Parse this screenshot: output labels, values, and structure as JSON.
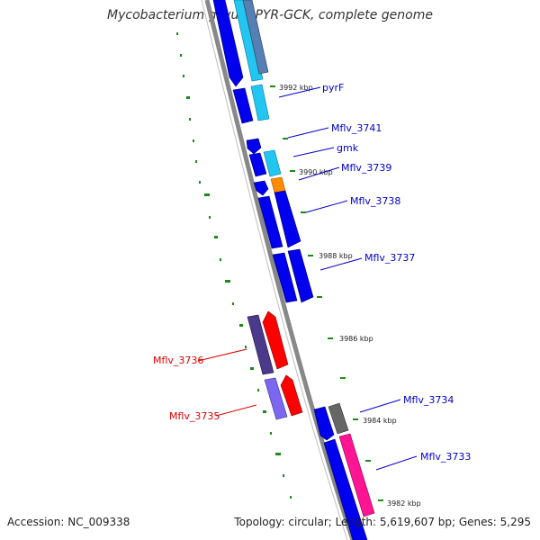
{
  "title": "Mycobacterium gilvum PYR-GCK, complete genome",
  "footer": {
    "accession": "Accession: NC_009338",
    "stats": "Topology: circular; Length: 5,619,607 bp; Genes: 5,295"
  },
  "colors": {
    "backbone": "#888888",
    "forward_cds": "#0000ee",
    "reverse_cds": "#0000ee",
    "rna": "#22c6f0",
    "orange_feature": "#ff8c00",
    "red_feature": "#ff0000",
    "purple_feature": "#4b3a8c",
    "lavender_feature": "#7b68ee",
    "grey_feature": "#666666",
    "pink_feature": "#ff1493",
    "tick_green": "#1a8a1a",
    "forward_label": "#0000cc",
    "reverse_label": "#dd0000"
  },
  "kbp_labels": [
    "3992 kbp",
    "3990 kbp",
    "3988 kbp",
    "3986 kbp",
    "3984 kbp",
    "3982 kbp"
  ],
  "gene_labels": [
    {
      "name": "pyrF",
      "strand": "forward"
    },
    {
      "name": "Mflv_3741",
      "strand": "forward"
    },
    {
      "name": "gmk",
      "strand": "forward"
    },
    {
      "name": "Mflv_3739",
      "strand": "forward"
    },
    {
      "name": "Mflv_3738",
      "strand": "forward"
    },
    {
      "name": "Mflv_3737",
      "strand": "forward"
    },
    {
      "name": "Mflv_3736",
      "strand": "reverse"
    },
    {
      "name": "Mflv_3735",
      "strand": "reverse"
    },
    {
      "name": "Mflv_3734",
      "strand": "forward"
    },
    {
      "name": "Mflv_3733",
      "strand": "forward"
    }
  ]
}
